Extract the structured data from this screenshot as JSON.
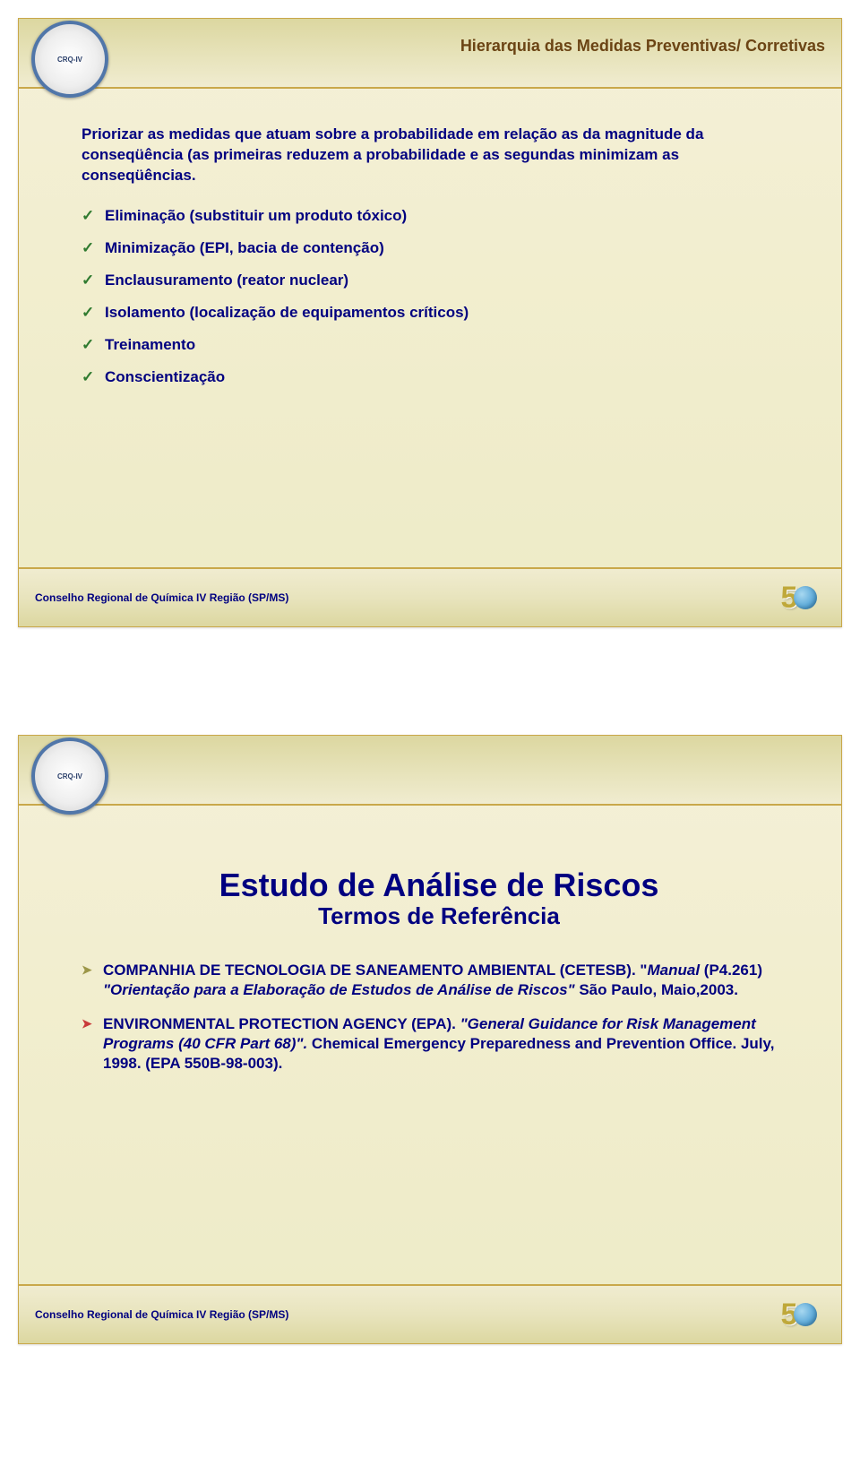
{
  "colors": {
    "navy": "#000080",
    "green": "#2f7a2f",
    "orange": "#d97326",
    "brown": "#6b4414",
    "red_arrow": "#c93a3a",
    "olive_arrow": "#9c9648",
    "slide_bg_top": "#f4f0d8",
    "slide_bg_bottom": "#edebc7",
    "border": "#c9a84a"
  },
  "fonts": {
    "title_size_pt": 18,
    "body_size_pt": 17,
    "big_title_pt": 36,
    "subtitle_pt": 26,
    "footer_pt": 12
  },
  "logo_text": "CRQ-IV",
  "footer": {
    "text": "Conselho Regional de Química IV Região (SP/MS)",
    "anniversary_digit": "5"
  },
  "slide1": {
    "title": "Hierarquia das Medidas Preventivas/ Corretivas",
    "intro": "Priorizar as medidas que atuam sobre a probabilidade em relação as da magnitude da conseqüência (as primeiras reduzem a probabilidade e as segundas minimizam as conseqüências.",
    "items": [
      "Eliminação (substituir um produto tóxico)",
      "Minimização (EPI, bacia de contenção)",
      "Enclausuramento (reator nuclear)",
      "Isolamento (localização de equipamentos críticos)",
      "Treinamento",
      "Conscientização"
    ]
  },
  "slide2": {
    "big_title": "Estudo de Análise de Riscos",
    "subtitle": "Termos de Referência",
    "refs": [
      {
        "arrow_color": "#9c9648",
        "html_parts": [
          {
            "text": "COMPANHIA DE TECNOLOGIA DE SANEAMENTO AMBIENTAL (CETESB). \"",
            "italic": false
          },
          {
            "text": "Manual ",
            "italic": true
          },
          {
            "text": "(P4.261) ",
            "italic": false
          },
          {
            "text": "\"Orientação para a Elaboração de Estudos de Análise de Riscos\"",
            "italic": true
          },
          {
            "text": " São Paulo, Maio,2003.",
            "italic": false
          }
        ]
      },
      {
        "arrow_color": "#c93a3a",
        "html_parts": [
          {
            "text": "ENVIRONMENTAL PROTECTION AGENCY (EPA). ",
            "italic": false
          },
          {
            "text": "\"General Guidance for Risk Management Programs (40 CFR Part 68)\".",
            "italic": true
          },
          {
            "text": " Chemical Emergency Preparedness and Prevention Office. July, 1998. (EPA 550B-98-003).",
            "italic": false
          }
        ]
      }
    ]
  }
}
